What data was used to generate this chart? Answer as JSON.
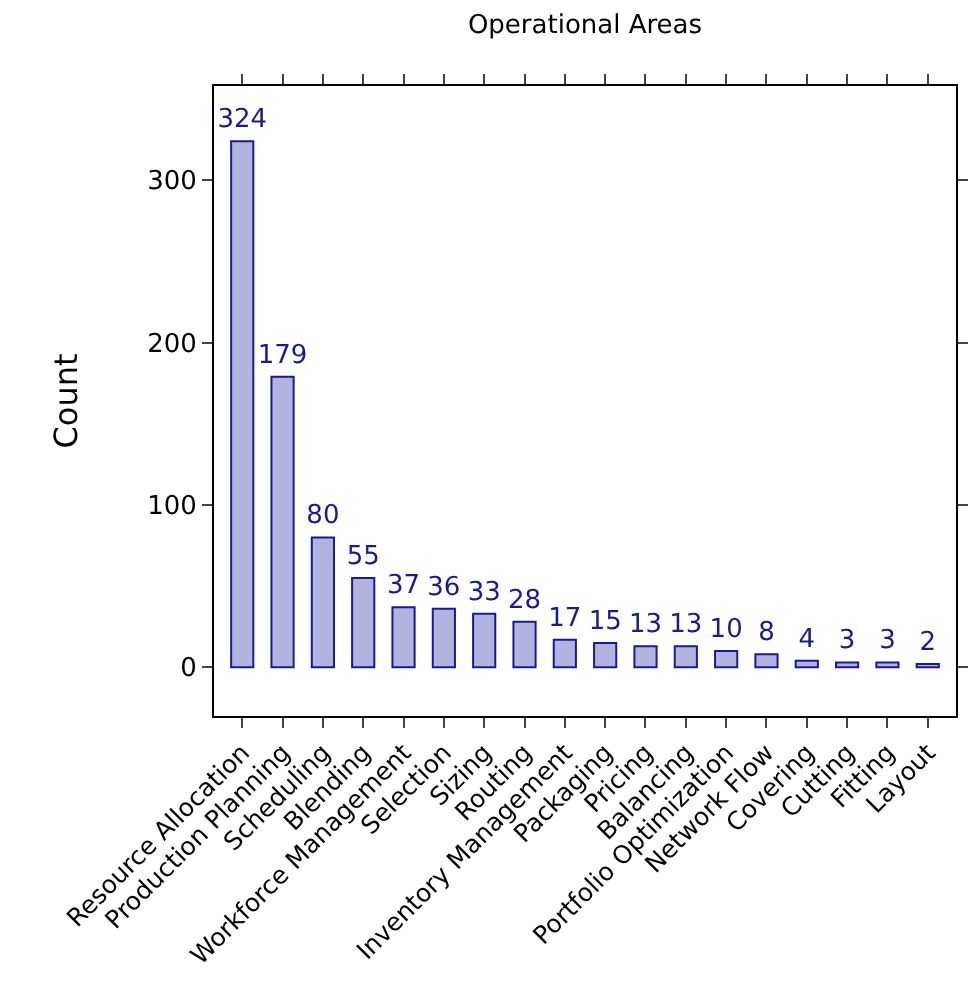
{
  "chart_data": {
    "type": "bar",
    "title": "Operational Areas",
    "ylabel": "Count",
    "categories": [
      "Resource Allocation",
      "Production Planning",
      "Scheduling",
      "Blending",
      "Workforce Management",
      "Selection",
      "Sizing",
      "Routing",
      "Inventory Management",
      "Packaging",
      "Pricing",
      "Balancing",
      "Portfolio Optimization",
      "Network Flow",
      "Covering",
      "Cutting",
      "Fitting",
      "Layout"
    ],
    "values": [
      324,
      179,
      80,
      55,
      37,
      36,
      33,
      28,
      17,
      15,
      13,
      13,
      10,
      8,
      4,
      3,
      3,
      2
    ],
    "color": "#b3b3e0",
    "data_labels": true,
    "ylim": [
      -30,
      358
    ],
    "yticks": [
      0,
      100,
      200,
      300
    ]
  }
}
